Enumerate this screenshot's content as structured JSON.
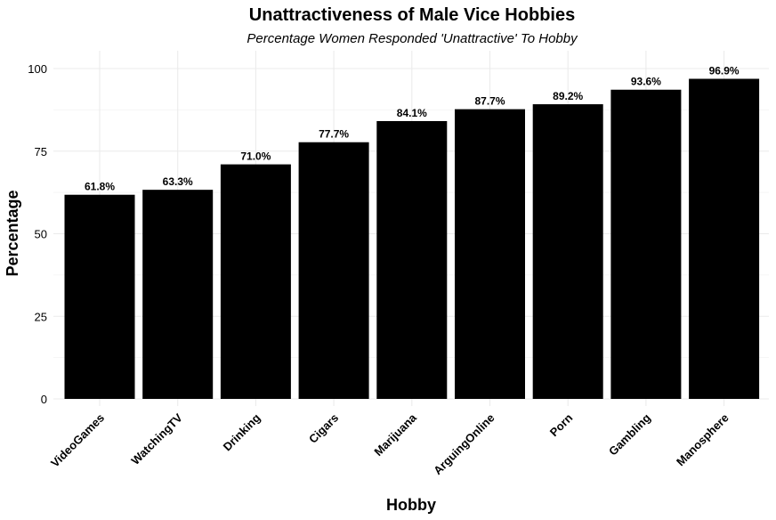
{
  "chart_data": {
    "type": "bar",
    "title": "Unattractiveness of Male Vice Hobbies",
    "subtitle": "Percentage Women Responded 'Unattractive' To Hobby",
    "xlabel": "Hobby",
    "ylabel": "Percentage",
    "categories": [
      "VideoGames",
      "WatchingTV",
      "Drinking",
      "Cigars",
      "Marijuana",
      "ArguingOnline",
      "Porn",
      "Gambling",
      "Manosphere"
    ],
    "values": [
      61.8,
      63.3,
      71.0,
      77.7,
      84.1,
      87.7,
      89.2,
      93.6,
      96.9
    ],
    "data_labels": [
      "61.8%",
      "63.3%",
      "71.0%",
      "77.7%",
      "84.1%",
      "87.7%",
      "89.2%",
      "93.6%",
      "96.9%"
    ],
    "ylim": [
      0,
      100
    ],
    "yticks": [
      0,
      25,
      50,
      75,
      100
    ],
    "bar_color": "#000000",
    "grid": true,
    "legend": "none"
  }
}
